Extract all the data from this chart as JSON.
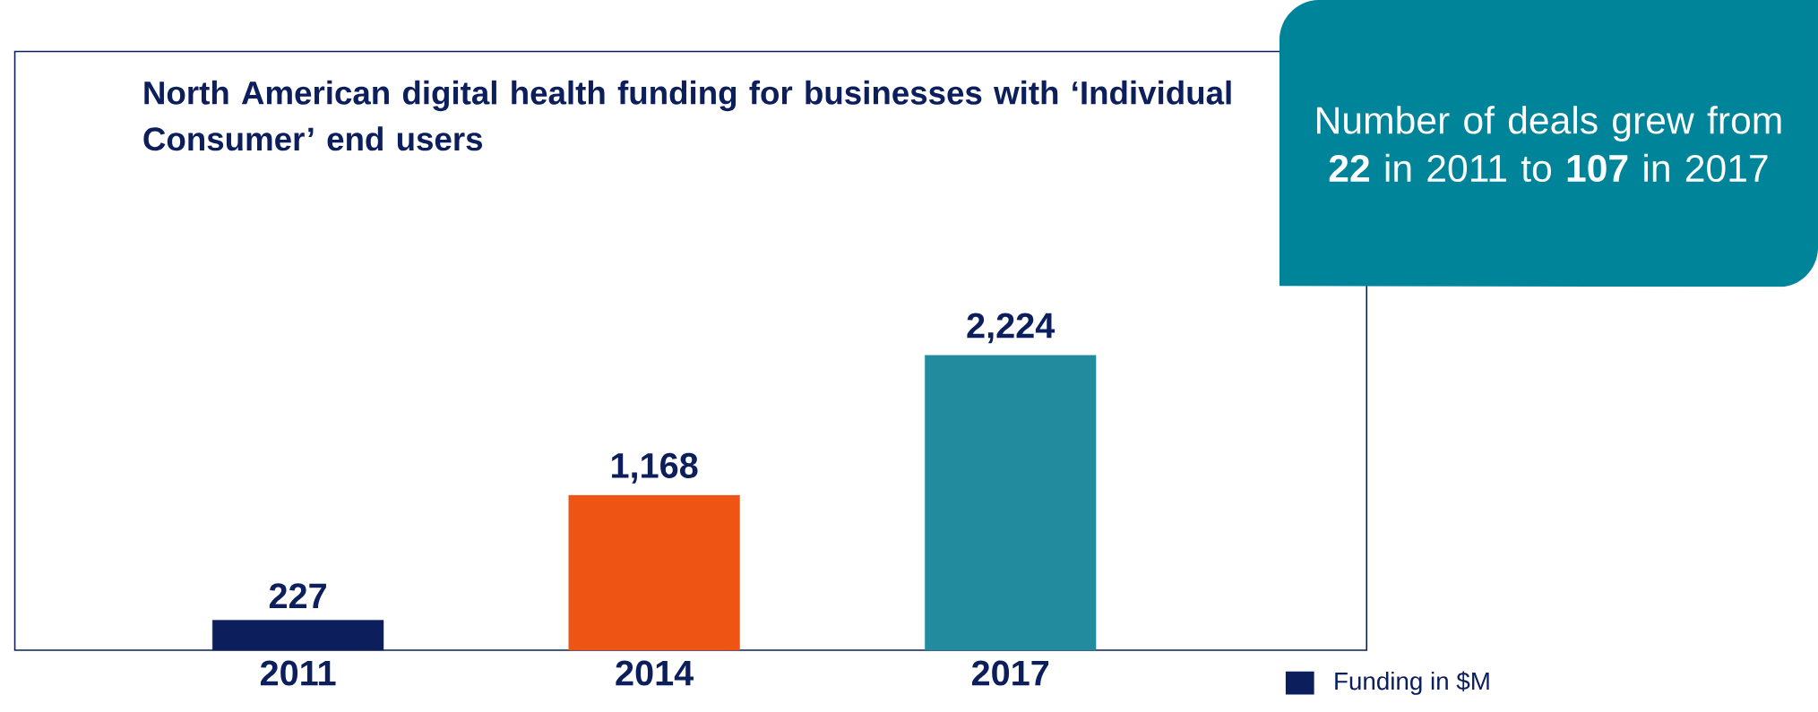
{
  "chart_data": {
    "type": "bar",
    "title": "North American digital health funding for businesses with ‘Individual Consumer’ end users",
    "categories": [
      "2011",
      "2014",
      "2017"
    ],
    "series": [
      {
        "name": "Funding in $M",
        "color": "#0c1f5c",
        "colors": [
          "#0c1f5c",
          "#ee5515",
          "#238b9e"
        ],
        "values": [
          227,
          1168,
          2224
        ],
        "value_labels": [
          "227",
          "1,168",
          "2,224"
        ]
      }
    ],
    "annotations": [
      "Number of deals grew from **22** in 2011 to **107** in 2017"
    ],
    "legend": "bottom right"
  }
}
